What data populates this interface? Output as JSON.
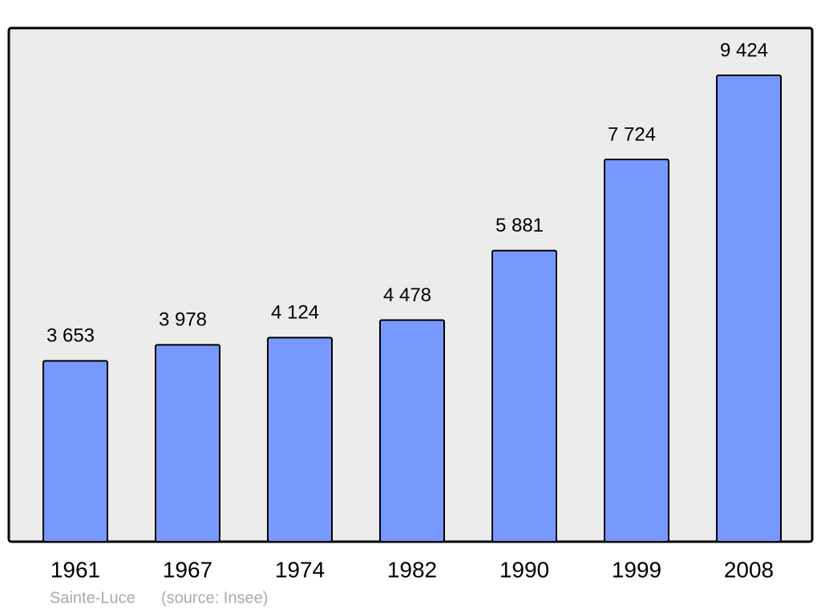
{
  "chart_data": {
    "type": "bar",
    "categories": [
      "1961",
      "1967",
      "1974",
      "1982",
      "1990",
      "1999",
      "2008"
    ],
    "values": [
      3653,
      3978,
      4124,
      4478,
      5881,
      7724,
      9424
    ],
    "value_labels": [
      "3 653",
      "3 978",
      "4 124",
      "4 478",
      "5 881",
      "7 724",
      "9 424"
    ],
    "color": "#7799ff",
    "caption": "Sainte-Luce",
    "source": "(source: Insee)"
  }
}
